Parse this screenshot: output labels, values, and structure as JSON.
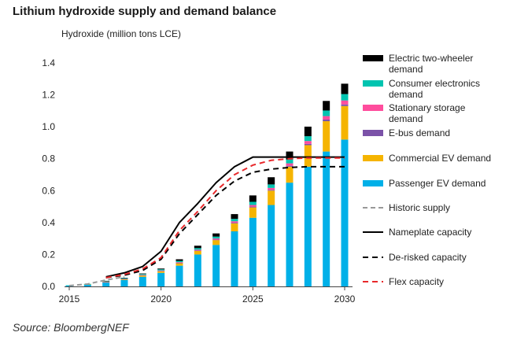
{
  "page_title": "Lithium hydroxide supply and demand balance",
  "source": "Source: BloombergNEF",
  "chart_data": {
    "type": "bar",
    "title": "Lithium hydroxide supply and demand balance",
    "ylabel": "Hydroxide (million tons LCE)",
    "xlabel": "",
    "ylim": [
      0,
      1.4
    ],
    "yticks": [
      0.0,
      0.2,
      0.4,
      0.6,
      0.8,
      1.0,
      1.2,
      1.4
    ],
    "ytick_labels": [
      "0.0",
      "0.2",
      "0.4",
      "0.6",
      "0.8",
      "1.0",
      "1.2",
      "1.4"
    ],
    "xticks": [
      "2015",
      "2020",
      "2025",
      "2030"
    ],
    "categories": [
      2015,
      2016,
      2017,
      2018,
      2019,
      2020,
      2021,
      2022,
      2023,
      2024,
      2025,
      2026,
      2027,
      2028,
      2029,
      2030
    ],
    "stacked": true,
    "series": [
      {
        "name": "Passenger EV demand",
        "color": "#00B0E8",
        "values": [
          0.005,
          0.012,
          0.025,
          0.04,
          0.06,
          0.085,
          0.13,
          0.2,
          0.26,
          0.345,
          0.43,
          0.51,
          0.65,
          0.75,
          0.845,
          0.92
        ]
      },
      {
        "name": "Commercial EV demand",
        "color": "#F5B400",
        "values": [
          0.0,
          0.001,
          0.003,
          0.005,
          0.008,
          0.01,
          0.015,
          0.022,
          0.03,
          0.05,
          0.065,
          0.09,
          0.1,
          0.135,
          0.19,
          0.21
        ]
      },
      {
        "name": "E-bus demand",
        "color": "#7B52A8",
        "values": [
          0.0,
          0.0,
          0.001,
          0.001,
          0.002,
          0.002,
          0.003,
          0.003,
          0.003,
          0.004,
          0.005,
          0.005,
          0.006,
          0.008,
          0.01,
          0.01
        ]
      },
      {
        "name": "Stationary storage demand",
        "color": "#FF4D9D",
        "values": [
          0.0,
          0.0,
          0.001,
          0.001,
          0.002,
          0.003,
          0.004,
          0.005,
          0.007,
          0.009,
          0.01,
          0.012,
          0.015,
          0.018,
          0.022,
          0.025
        ]
      },
      {
        "name": "Consumer electronics demand",
        "color": "#00C4B0",
        "values": [
          0.002,
          0.003,
          0.004,
          0.005,
          0.006,
          0.007,
          0.008,
          0.01,
          0.012,
          0.015,
          0.02,
          0.022,
          0.024,
          0.03,
          0.035,
          0.04
        ]
      },
      {
        "name": "Electric two-wheeler demand",
        "color": "#000000",
        "values": [
          0.0,
          0.0,
          0.001,
          0.002,
          0.003,
          0.005,
          0.01,
          0.015,
          0.02,
          0.03,
          0.04,
          0.045,
          0.05,
          0.06,
          0.06,
          0.065
        ]
      }
    ],
    "lines": [
      {
        "name": "Historic supply",
        "color": "#999999",
        "dash": "6,4",
        "width": 2,
        "x": [
          2015,
          2016,
          2017,
          2018
        ],
        "y": [
          0.005,
          0.015,
          0.04,
          0.06
        ]
      },
      {
        "name": "Nameplate capacity",
        "color": "#000000",
        "dash": "",
        "width": 2,
        "x": [
          2017,
          2018,
          2019,
          2020,
          2021,
          2022,
          2023,
          2024,
          2025,
          2026,
          2027,
          2028,
          2029,
          2030
        ],
        "y": [
          0.06,
          0.085,
          0.125,
          0.22,
          0.4,
          0.52,
          0.65,
          0.75,
          0.81,
          0.81,
          0.81,
          0.81,
          0.81,
          0.81
        ]
      },
      {
        "name": "De-risked capacity",
        "color": "#000000",
        "dash": "7,5",
        "width": 2,
        "x": [
          2017,
          2018,
          2019,
          2020,
          2021,
          2022,
          2023,
          2024,
          2025,
          2026,
          2027,
          2028,
          2029,
          2030
        ],
        "y": [
          0.055,
          0.07,
          0.1,
          0.17,
          0.33,
          0.45,
          0.57,
          0.66,
          0.715,
          0.735,
          0.745,
          0.75,
          0.75,
          0.75
        ]
      },
      {
        "name": "Flex capacity",
        "color": "#E8282B",
        "dash": "7,5",
        "width": 2,
        "x": [
          2017,
          2018,
          2019,
          2020,
          2021,
          2022,
          2023,
          2024,
          2025,
          2026,
          2027,
          2028,
          2029,
          2030
        ],
        "y": [
          0.055,
          0.075,
          0.11,
          0.18,
          0.35,
          0.47,
          0.6,
          0.7,
          0.76,
          0.79,
          0.8,
          0.805,
          0.805,
          0.805
        ]
      }
    ],
    "legend": {
      "placement": "right",
      "entries": [
        {
          "label": "Electric two-wheeler demand",
          "kind": "box",
          "color": "#000000"
        },
        {
          "label": "Consumer electronics demand",
          "kind": "box",
          "color": "#00C4B0"
        },
        {
          "label": "Stationary storage demand",
          "kind": "box",
          "color": "#FF4D9D"
        },
        {
          "label": "E-bus demand",
          "kind": "box",
          "color": "#7B52A8"
        },
        {
          "label": "Commercial EV demand",
          "kind": "box",
          "color": "#F5B400"
        },
        {
          "label": "Passenger EV demand",
          "kind": "box",
          "color": "#00B0E8"
        },
        {
          "label": "Historic supply",
          "kind": "line",
          "color": "#999999",
          "dash": "6,4"
        },
        {
          "label": "Nameplate capacity",
          "kind": "line",
          "color": "#000000",
          "dash": ""
        },
        {
          "label": "De-risked capacity",
          "kind": "line",
          "color": "#000000",
          "dash": "7,5"
        },
        {
          "label": "Flex capacity",
          "kind": "line",
          "color": "#E8282B",
          "dash": "7,5"
        }
      ]
    }
  }
}
